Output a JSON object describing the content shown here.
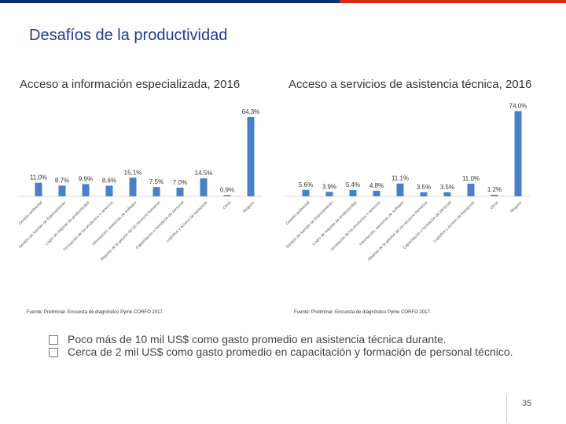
{
  "header": {
    "title": "Desafíos de la productividad",
    "colors": {
      "navy": "#0a2d6e",
      "red": "#d52b1e",
      "bar": "#4a7fc9"
    }
  },
  "chart_data": [
    {
      "type": "bar",
      "title": "Acceso a información especializada, 2016",
      "categories": [
        "Gestión ambiental",
        "Gestión de fuentes de financiamiento",
        "Logro de mejoras de productividad",
        "Innovación de los productos o servicios",
        "Información, asesorías de software",
        "Mejoras de la gestión de los recursos humanos",
        "Capacitación o formación de personal",
        "Logística y acceso de transporte",
        "Otros",
        "Ninguno"
      ],
      "values": [
        11.0,
        8.7,
        9.9,
        8.6,
        15.1,
        7.5,
        7.0,
        14.5,
        0.9,
        64.3
      ],
      "labels": [
        "11.0%",
        "8.7%",
        "9.9%",
        "8.6%",
        "15.1%",
        "7.5%",
        "7.0%",
        "14.5%",
        "0.9%",
        "64.3%"
      ],
      "ylim": [
        0,
        70
      ],
      "source": "Fuente: Preliminar. Encuesta de diagnóstico Pyme CORFO 2017."
    },
    {
      "type": "bar",
      "title": "Acceso a servicios de asistencia técnica, 2016",
      "categories": [
        "Gestión ambiental",
        "Gestión de fuentes de financiamiento",
        "Logro de mejoras de productividad",
        "Innovación de los productos o servicios",
        "Información, asesorías de software",
        "Mejoras de la gestión de los recursos humanos",
        "Capacitación o formación de personal",
        "Logística y acceso de transporte",
        "Otros",
        "Ninguno"
      ],
      "values": [
        5.6,
        3.9,
        5.4,
        4.8,
        11.1,
        3.5,
        3.5,
        11.0,
        1.2,
        74.0
      ],
      "labels": [
        "5.6%",
        "3.9%",
        "5.4%",
        "4.8%",
        "11.1%",
        "3.5%",
        "3.5%",
        "11.0%",
        "1.2%",
        "74.0%"
      ],
      "ylim": [
        0,
        75
      ],
      "source": "Fuente: Preliminar. Encuesta de diagnóstico Pyme CORFO 2017."
    }
  ],
  "bullets": [
    "Poco más de 10 mil US$ como gasto promedio en asistencia técnica durante.",
    "Cerca de 2 mil US$ como gasto promedio en capacitación y formación de personal técnico."
  ],
  "page_number": "35"
}
